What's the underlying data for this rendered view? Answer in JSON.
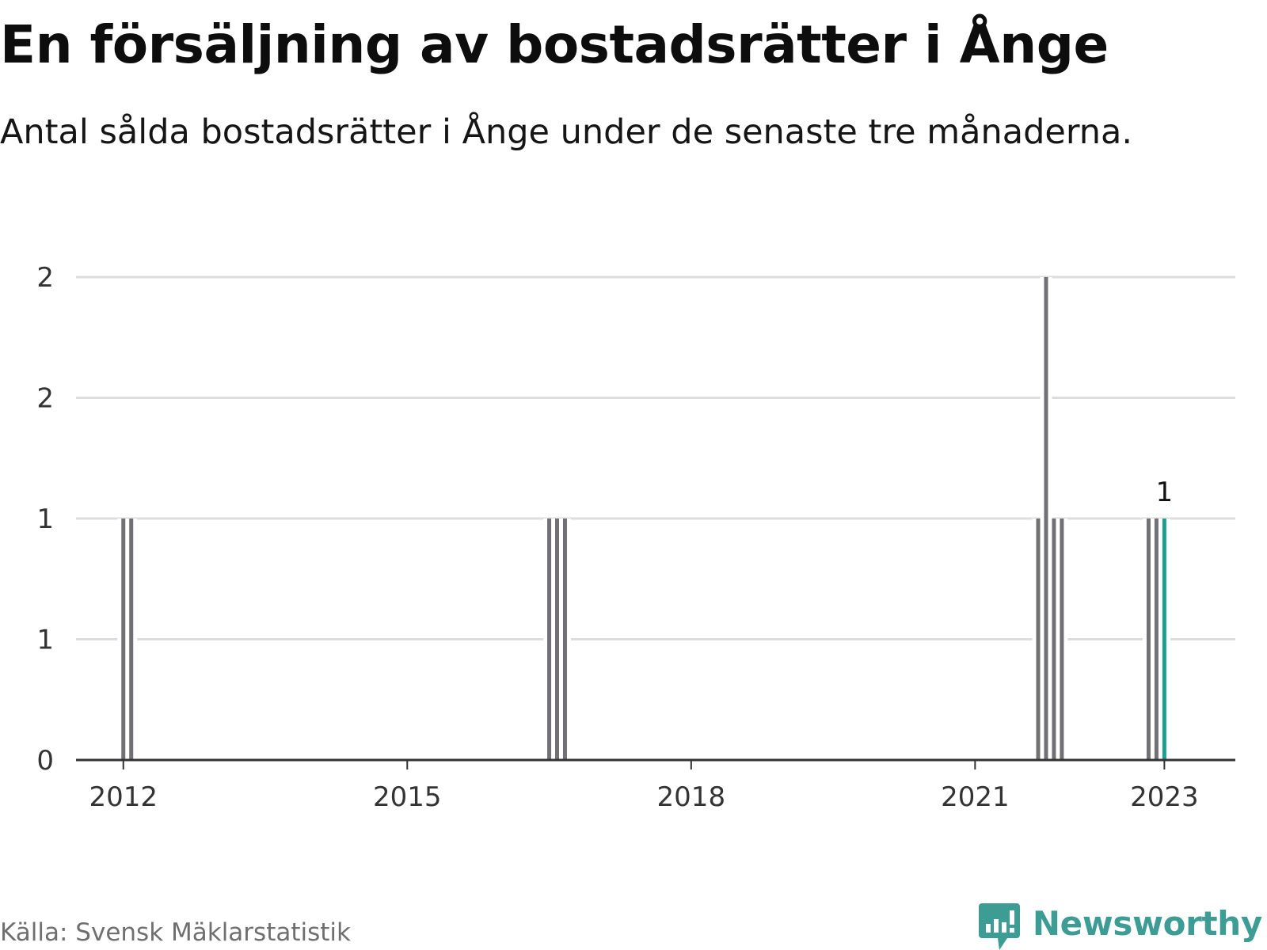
{
  "header": {
    "title": "En försäljning av bostadsrätter i Ånge",
    "subtitle": "Antal sålda bostadsrätter i Ånge under de senaste tre månaderna."
  },
  "footer": {
    "source": "Källa: Svensk Mäklarstatistik",
    "brand": "Newsworthy",
    "brand_icon": "bar-chart-speech-bubble-icon"
  },
  "colors": {
    "bar": "#707075",
    "highlight": "#1f9d8f",
    "grid": "#dddddd",
    "axis": "#333333",
    "brand": "#3d9c93"
  },
  "chart_data": {
    "type": "bar",
    "x_unit": "month",
    "xlim": [
      "2011-07",
      "2023-10"
    ],
    "ylim": [
      0,
      2
    ],
    "y_ticks": [
      0,
      0.5,
      1,
      1.5,
      2
    ],
    "y_tick_labels": [
      "0",
      "1",
      "1",
      "2",
      "2"
    ],
    "x_ticks": [
      "2012-01",
      "2015-01",
      "2018-01",
      "2021-01",
      "2023-01"
    ],
    "x_tick_labels": [
      "2012",
      "2015",
      "2018",
      "2021",
      "2023"
    ],
    "highlight_label": "1",
    "points": [
      {
        "x": "2012-01",
        "y": 1
      },
      {
        "x": "2012-02",
        "y": 1
      },
      {
        "x": "2016-07",
        "y": 1
      },
      {
        "x": "2016-08",
        "y": 1
      },
      {
        "x": "2016-09",
        "y": 1
      },
      {
        "x": "2021-09",
        "y": 1
      },
      {
        "x": "2021-10",
        "y": 2
      },
      {
        "x": "2021-11",
        "y": 1
      },
      {
        "x": "2021-12",
        "y": 1
      },
      {
        "x": "2022-11",
        "y": 1
      },
      {
        "x": "2022-12",
        "y": 1
      },
      {
        "x": "2023-01",
        "y": 1,
        "highlight": true
      }
    ]
  }
}
